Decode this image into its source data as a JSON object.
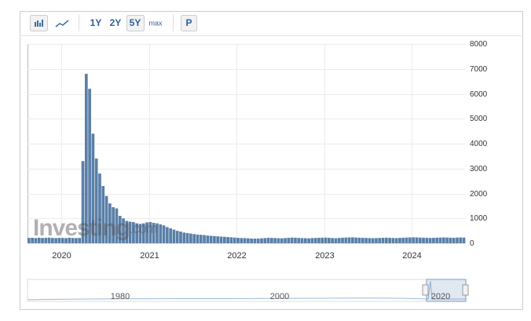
{
  "toolbar": {
    "ranges": [
      "1Y",
      "2Y",
      "5Y",
      "max"
    ],
    "active": "5Y",
    "button": "P"
  },
  "chart_data": {
    "type": "bar",
    "color": "#5a7fa8",
    "categories": [
      null,
      null,
      null,
      null,
      null,
      null,
      null,
      null,
      null,
      null,
      "2020",
      null,
      null,
      null,
      null,
      null,
      null,
      null,
      null,
      null,
      null,
      null,
      null,
      null,
      null,
      null,
      null,
      null,
      null,
      null,
      null,
      null,
      null,
      null,
      null,
      null,
      "2021",
      null,
      null,
      null,
      null,
      null,
      null,
      null,
      null,
      null,
      null,
      null,
      null,
      null,
      null,
      null,
      null,
      null,
      null,
      null,
      null,
      null,
      null,
      null,
      null,
      null,
      "2022",
      null,
      null,
      null,
      null,
      null,
      null,
      null,
      null,
      null,
      null,
      null,
      null,
      null,
      null,
      null,
      null,
      null,
      null,
      null,
      null,
      null,
      null,
      null,
      null,
      null,
      "2023",
      null,
      null,
      null,
      null,
      null,
      null,
      null,
      null,
      null,
      null,
      null,
      null,
      null,
      null,
      null,
      null,
      null,
      null,
      null,
      null,
      null,
      null,
      null,
      null,
      null,
      "2024",
      null,
      null,
      null,
      null,
      null,
      null,
      null,
      null,
      null,
      null,
      null,
      null,
      null,
      null,
      null
    ],
    "values": [
      215,
      220,
      210,
      225,
      215,
      220,
      230,
      215,
      210,
      220,
      215,
      210,
      225,
      215,
      210,
      215,
      3300,
      6800,
      6200,
      4400,
      3400,
      2800,
      2300,
      1900,
      1600,
      1450,
      1400,
      1100,
      1000,
      900,
      870,
      850,
      800,
      780,
      800,
      840,
      850,
      820,
      800,
      760,
      720,
      650,
      600,
      550,
      500,
      470,
      430,
      410,
      390,
      370,
      350,
      340,
      330,
      310,
      300,
      290,
      280,
      270,
      260,
      250,
      240,
      230,
      220,
      210,
      210,
      200,
      190,
      190,
      190,
      200,
      210,
      220,
      215,
      210,
      205,
      200,
      210,
      220,
      230,
      225,
      215,
      210,
      205,
      200,
      210,
      215,
      220,
      225,
      230,
      220,
      210,
      205,
      215,
      225,
      230,
      235,
      240,
      230,
      225,
      220,
      215,
      210,
      205,
      210,
      215,
      220,
      225,
      220,
      215,
      210,
      220,
      225,
      230,
      235,
      240,
      235,
      230,
      225,
      220,
      215,
      220,
      225,
      230,
      235,
      230,
      225,
      220,
      230,
      235,
      230
    ],
    "ylim": [
      0,
      8000
    ],
    "yticks": [
      0,
      1000,
      2000,
      3000,
      4000,
      5000,
      6000,
      7000,
      8000
    ],
    "grid": true,
    "watermark": [
      "Investing",
      ".com"
    ],
    "navigator": [
      "1980",
      "2000",
      "2020"
    ]
  }
}
